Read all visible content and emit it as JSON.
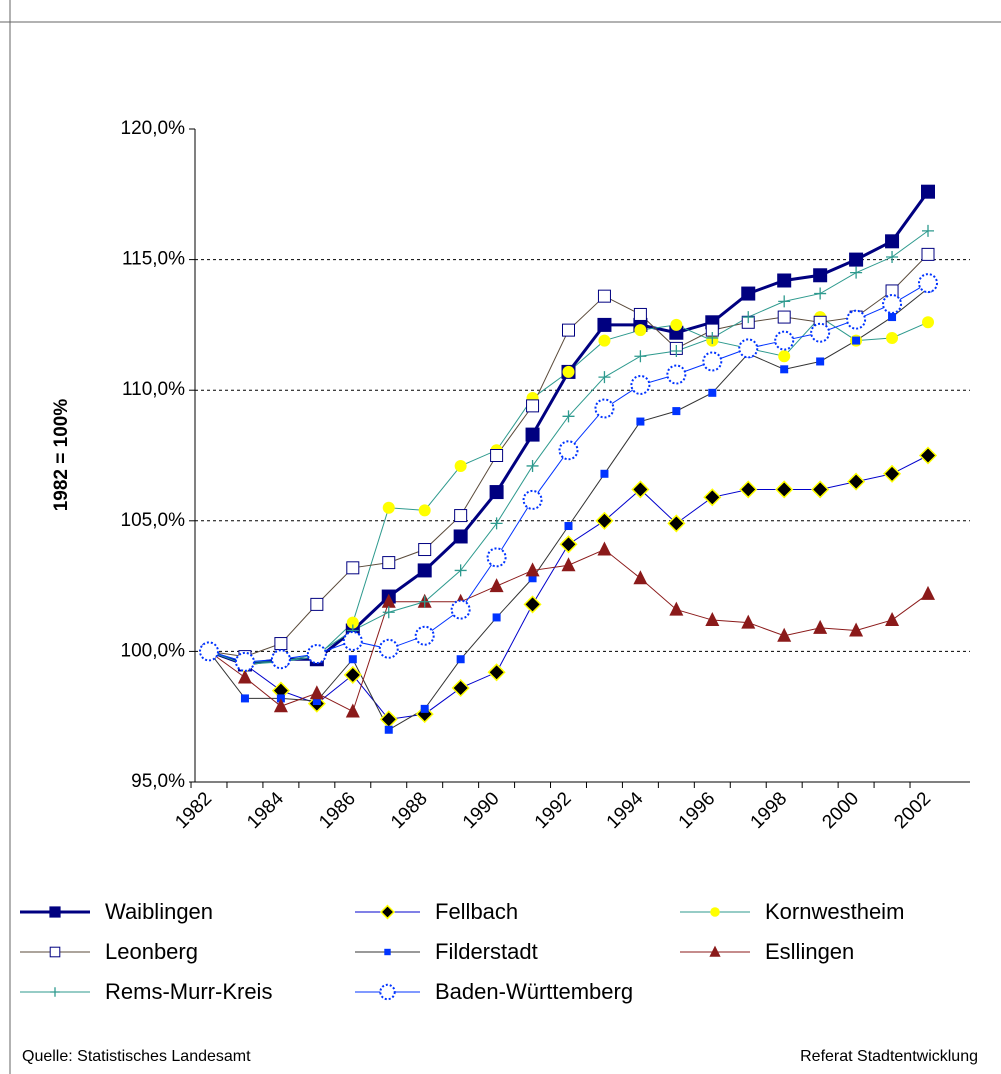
{
  "chart_data": {
    "type": "line",
    "y_label": "1982 = 100%",
    "categories": [
      "1982",
      null,
      "1984",
      null,
      "1986",
      null,
      "1988",
      null,
      "1990",
      null,
      "1992",
      null,
      "1994",
      null,
      "1996",
      null,
      "1998",
      null,
      "2000",
      null,
      "2002"
    ],
    "ylim": [
      95,
      120
    ],
    "yticks": [
      {
        "value": 95,
        "label": "95,0%"
      },
      {
        "value": 100,
        "label": "100,0%"
      },
      {
        "value": 105,
        "label": "105,0%"
      },
      {
        "value": 110,
        "label": "110,0%"
      },
      {
        "value": 115,
        "label": "115,0%"
      },
      {
        "value": 120,
        "label": "120,0%"
      }
    ],
    "grid": true,
    "series": [
      {
        "name": "Waiblingen",
        "color": "#000080",
        "marker": "square",
        "marker_color": "#000080",
        "width": 3,
        "values": [
          100.0,
          99.5,
          99.7,
          99.7,
          100.8,
          102.1,
          103.1,
          104.4,
          106.1,
          108.3,
          110.7,
          112.5,
          112.5,
          112.2,
          112.6,
          113.7,
          114.2,
          114.4,
          115.0,
          115.7,
          117.6
        ]
      },
      {
        "name": "Fellbach",
        "color": "#0000cc",
        "marker": "diamond",
        "marker_color": "#000000",
        "width": 1,
        "values": [
          100.0,
          99.5,
          98.5,
          98.0,
          99.1,
          97.4,
          97.6,
          98.6,
          99.2,
          101.8,
          104.1,
          105.0,
          106.2,
          104.9,
          105.9,
          106.2,
          106.2,
          106.2,
          106.5,
          106.8,
          107.5
        ]
      },
      {
        "name": "Kornwestheim",
        "color": "#2e9a8e",
        "marker": "circle",
        "marker_color": "#ffff00",
        "width": 1,
        "values": [
          100.0,
          99.6,
          99.6,
          99.8,
          101.1,
          105.5,
          105.4,
          107.1,
          107.7,
          109.7,
          110.7,
          111.9,
          112.3,
          112.5,
          111.9,
          111.6,
          111.3,
          112.8,
          111.9,
          112.0,
          112.6
        ]
      },
      {
        "name": "Leonberg",
        "color": "#5a4a3a",
        "marker": "hollow-square",
        "marker_color": "#000080",
        "width": 1,
        "values": [
          100.0,
          99.8,
          100.3,
          101.8,
          103.2,
          103.4,
          103.9,
          105.2,
          107.5,
          109.4,
          112.3,
          113.6,
          112.9,
          111.6,
          112.3,
          112.6,
          112.8,
          112.6,
          112.8,
          113.8,
          115.2
        ]
      },
      {
        "name": "Filderstadt",
        "color": "#333333",
        "marker": "small-square",
        "marker_color": "#0033ff",
        "width": 1,
        "values": [
          100.0,
          98.2,
          98.2,
          98.1,
          99.7,
          97.0,
          97.8,
          99.7,
          101.3,
          102.8,
          104.8,
          106.8,
          108.8,
          109.2,
          109.9,
          111.4,
          110.8,
          111.1,
          111.9,
          112.8,
          113.9
        ]
      },
      {
        "name": "Esllingen",
        "color": "#8b1a1a",
        "marker": "triangle",
        "marker_color": "#8b1a1a",
        "width": 1,
        "values": [
          100.0,
          99.0,
          97.9,
          98.4,
          97.7,
          101.9,
          101.9,
          101.9,
          102.5,
          103.1,
          103.3,
          103.9,
          102.8,
          101.6,
          101.2,
          101.1,
          100.6,
          100.9,
          100.8,
          101.2,
          102.2
        ]
      },
      {
        "name": "Rems-Murr-Kreis",
        "color": "#2e9a8e",
        "marker": "plus",
        "marker_color": "#2e9a8e",
        "width": 1,
        "values": [
          100.0,
          99.5,
          99.6,
          99.9,
          100.8,
          101.5,
          101.9,
          103.1,
          104.9,
          107.1,
          109.0,
          110.5,
          111.3,
          111.5,
          112.0,
          112.8,
          113.4,
          113.7,
          114.5,
          115.1,
          116.1
        ]
      },
      {
        "name": "Baden-Württemberg",
        "color": "#0033ff",
        "marker": "dotted-circle",
        "marker_color": "#0033ff",
        "width": 1,
        "values": [
          100.0,
          99.6,
          99.7,
          99.9,
          100.4,
          100.1,
          100.6,
          101.6,
          103.6,
          105.8,
          107.7,
          109.3,
          110.2,
          110.6,
          111.1,
          111.6,
          111.9,
          112.2,
          112.7,
          113.3,
          114.1
        ]
      }
    ]
  },
  "footer": {
    "source": "Quelle: Statistisches Landesamt",
    "author": "Referat Stadtentwicklung"
  }
}
